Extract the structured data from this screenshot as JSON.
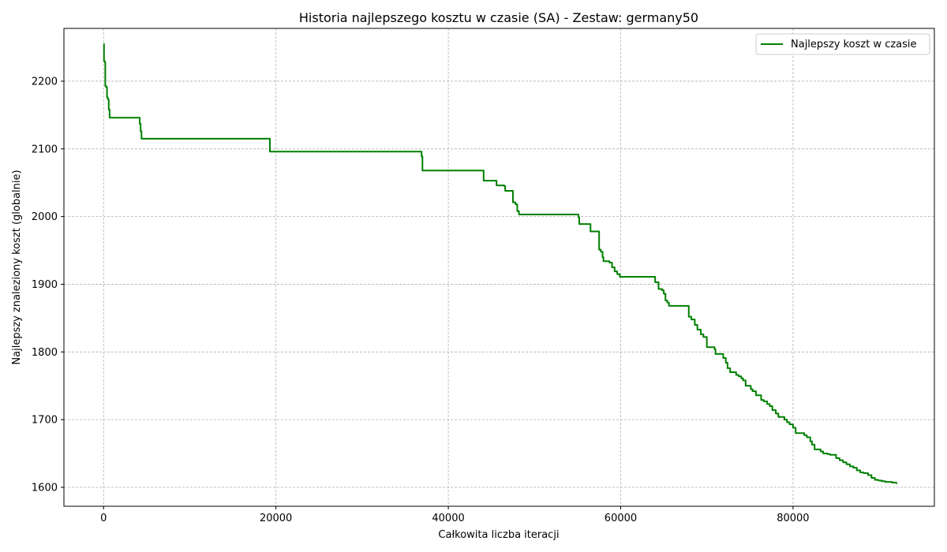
{
  "chart_data": {
    "type": "line",
    "title": "Historia najlepszego kosztu w czasie (SA) - Zestaw: germany50",
    "xlabel": "Całkowita liczba iteracji",
    "ylabel": "Najlepszy znaleziony koszt (globalnie)",
    "xlim": [
      -4600,
      96400
    ],
    "ylim": [
      1572,
      2278
    ],
    "xticks": [
      0,
      20000,
      40000,
      60000,
      80000
    ],
    "xtick_labels": [
      "0",
      "20000",
      "40000",
      "60000",
      "80000"
    ],
    "yticks": [
      1600,
      1700,
      1800,
      1900,
      2000,
      2100,
      2200
    ],
    "ytick_labels": [
      "1600",
      "1700",
      "1800",
      "1900",
      "2000",
      "2100",
      "2200"
    ],
    "grid": true,
    "legend_position": "top-right",
    "series": [
      {
        "name": "Najlepszy koszt w czasie",
        "color": "#008000",
        "x": [
          0,
          50,
          120,
          200,
          300,
          400,
          500,
          600,
          700,
          800,
          4100,
          4200,
          4300,
          4400,
          4500,
          19200,
          19300,
          36800,
          36900,
          37000,
          44000,
          44100,
          45500,
          45600,
          46500,
          46600,
          47400,
          47500,
          47800,
          48000,
          48200,
          55000,
          55100,
          55200,
          56400,
          56500,
          57400,
          57500,
          57700,
          57900,
          58000,
          58700,
          59000,
          59300,
          59600,
          59900,
          63800,
          64000,
          64400,
          64800,
          65000,
          65200,
          65400,
          65600,
          67700,
          67900,
          68200,
          68600,
          68900,
          69300,
          69600,
          70000,
          70900,
          71000,
          71900,
          72200,
          72400,
          72700,
          73400,
          73700,
          74000,
          74200,
          74500,
          75100,
          75300,
          75700,
          76300,
          76600,
          77000,
          77300,
          77600,
          78000,
          78300,
          79000,
          79300,
          79600,
          80000,
          80300,
          81300,
          81600,
          82000,
          82200,
          82500,
          83200,
          83500,
          84000,
          84300,
          84600,
          85000,
          85400,
          85800,
          86200,
          86600,
          87000,
          87400,
          87800,
          88200,
          88700,
          89100,
          89500,
          89900,
          90300,
          90700,
          91100,
          91500,
          92000
        ],
        "values": [
          2255,
          2230,
          2228,
          2193,
          2191,
          2176,
          2173,
          2158,
          2146,
          2146,
          2146,
          2137,
          2126,
          2115,
          2115,
          2115,
          2096,
          2096,
          2089,
          2068,
          2068,
          2053,
          2053,
          2046,
          2045,
          2038,
          2038,
          2021,
          2018,
          2008,
          2003,
          2003,
          1999,
          1989,
          1989,
          1978,
          1978,
          1951,
          1948,
          1940,
          1934,
          1932,
          1925,
          1919,
          1915,
          1911,
          1911,
          1903,
          1893,
          1891,
          1886,
          1876,
          1873,
          1868,
          1868,
          1852,
          1848,
          1840,
          1833,
          1826,
          1822,
          1807,
          1804,
          1797,
          1791,
          1784,
          1776,
          1770,
          1766,
          1764,
          1761,
          1758,
          1750,
          1745,
          1742,
          1736,
          1729,
          1727,
          1723,
          1720,
          1714,
          1709,
          1704,
          1700,
          1696,
          1693,
          1688,
          1680,
          1677,
          1674,
          1668,
          1663,
          1656,
          1653,
          1650,
          1649,
          1648,
          1648,
          1643,
          1640,
          1637,
          1634,
          1631,
          1629,
          1625,
          1622,
          1621,
          1618,
          1614,
          1611,
          1610,
          1609,
          1608,
          1608,
          1607,
          1605
        ]
      }
    ]
  }
}
